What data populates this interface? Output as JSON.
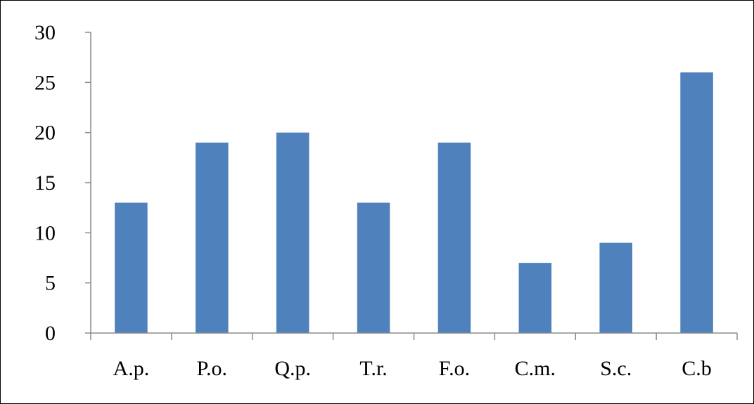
{
  "chart_data": {
    "type": "bar",
    "categories": [
      "A.p.",
      "P.o.",
      "Q.p.",
      "T.r.",
      "F.o.",
      "C.m.",
      "S.c.",
      "C.b"
    ],
    "values": [
      13,
      19,
      20,
      13,
      19,
      7,
      9,
      26
    ],
    "ylim": [
      0,
      30
    ],
    "yticks": [
      0,
      5,
      10,
      15,
      20,
      25,
      30
    ],
    "grid": false,
    "legend": "none",
    "bar_color": "#4F81BD"
  }
}
